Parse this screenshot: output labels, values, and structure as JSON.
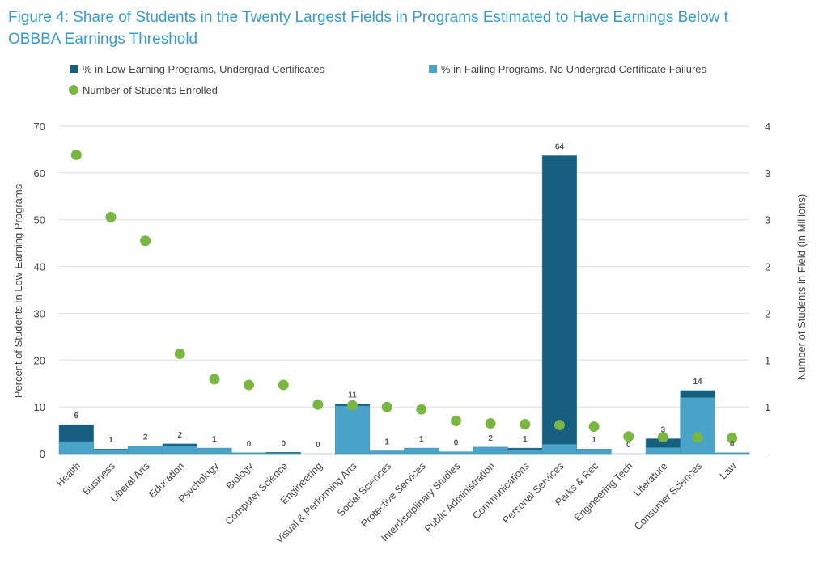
{
  "title_lines": [
    "Figure 4: Share of Students in the Twenty Largest Fields in Programs Estimated to Have Earnings Below t",
    "OBBBA Earnings Threshold"
  ],
  "chart_data": {
    "type": "bar",
    "stacked": true,
    "categories": [
      "Health",
      "Business",
      "Liberal Arts",
      "Education",
      "Psychology",
      "Biology",
      "Computer Science",
      "Engineering",
      "Visual & Performing Arts",
      "Social Sciences",
      "Protective Services",
      "Interdisciplinary Studies",
      "Public Administration",
      "Communications",
      "Personal Services",
      "Parks & Rec",
      "Engineering Tech",
      "Literature",
      "Consumer Sciences",
      "Law"
    ],
    "series": [
      {
        "name": "% in Failing Programs, No Undergrad Certificate Failures",
        "axis": "left",
        "color": "#4aa3c8",
        "values": [
          2.6,
          0.8,
          1.6,
          1.7,
          1.2,
          0.2,
          0.1,
          0,
          10.2,
          0.6,
          1.2,
          0.4,
          1.4,
          0.8,
          2.0,
          1.0,
          0,
          1.3,
          12.0,
          0.2
        ]
      },
      {
        "name": "% in Low-Earning Programs, Undergrad Certificates",
        "axis": "left",
        "color": "#175f80",
        "values": [
          3.6,
          0.2,
          0,
          0.4,
          0,
          0,
          0.2,
          0,
          0.4,
          0,
          0,
          0,
          0,
          0.4,
          61.7,
          0,
          0,
          1.9,
          1.5,
          0
        ]
      },
      {
        "name": "Number of Students Enrolled",
        "axis": "right",
        "type": "scatter",
        "color": "#7ab642",
        "values": [
          3.65,
          2.89,
          2.6,
          1.22,
          0.91,
          0.84,
          0.84,
          0.6,
          0.59,
          0.57,
          0.54,
          0.4,
          0.37,
          0.36,
          0.35,
          0.33,
          0.21,
          0.2,
          0.2,
          0.19
        ]
      }
    ],
    "data_labels": [
      "6",
      "1",
      "2",
      "2",
      "1",
      "0",
      "0",
      "0",
      "11",
      "1",
      "1",
      "0",
      "2",
      "1",
      "64",
      "1",
      "0",
      "3",
      "14",
      "0"
    ],
    "ylabel": "Percent of Students in Low-Earning Programs",
    "y2label": "Number of Students in Field (in Millions)",
    "ylim": [
      0,
      70
    ],
    "y_ticks": [
      "0",
      "10",
      "20",
      "30",
      "40",
      "50",
      "60",
      "70"
    ],
    "y2lim": [
      0,
      4
    ],
    "y2_ticks": [
      "-",
      "1",
      "1",
      "2",
      "2",
      "3",
      "3",
      "4"
    ],
    "grid": true,
    "legend_position": "top"
  }
}
